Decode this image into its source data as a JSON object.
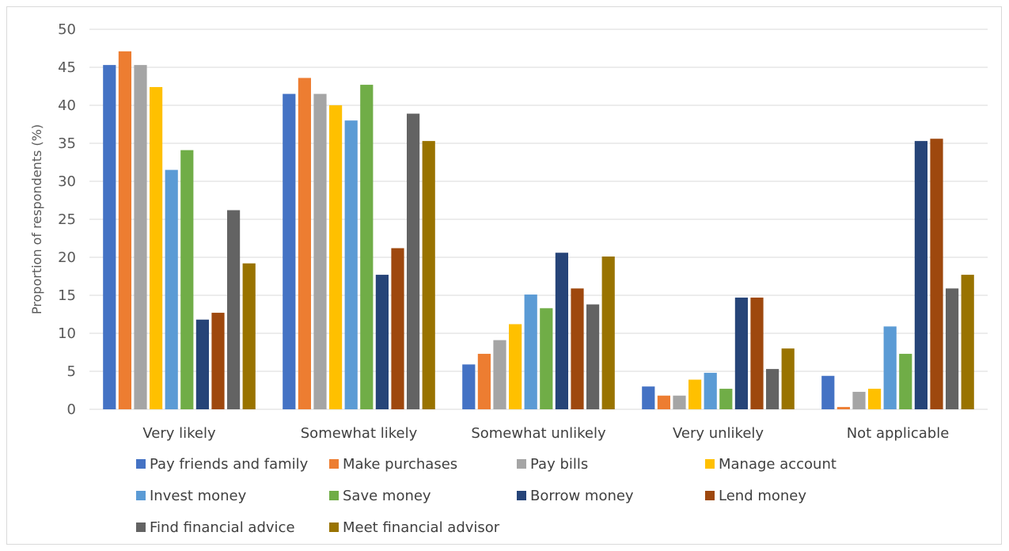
{
  "chart_data": {
    "type": "bar",
    "title": "",
    "xlabel": "",
    "ylabel": "Proportion of respondents (%)",
    "ylim": [
      0,
      50
    ],
    "yticks": [
      0,
      5,
      10,
      15,
      20,
      25,
      30,
      35,
      40,
      45,
      50
    ],
    "grid": true,
    "legend_position": "bottom",
    "categories": [
      "Very likely",
      "Somewhat likely",
      "Somewhat unlikely",
      "Very unlikely",
      "Not applicable"
    ],
    "series": [
      {
        "name": "Pay friends and family",
        "color": "#4472c4",
        "values": [
          45.3,
          41.5,
          5.9,
          3.0,
          4.4
        ]
      },
      {
        "name": "Make purchases",
        "color": "#ed7d31",
        "values": [
          47.1,
          43.6,
          7.3,
          1.8,
          0.3
        ]
      },
      {
        "name": "Pay bills",
        "color": "#a5a5a5",
        "values": [
          45.3,
          41.5,
          9.1,
          1.8,
          2.3
        ]
      },
      {
        "name": "Manage account",
        "color": "#ffc000",
        "values": [
          42.4,
          40.0,
          11.2,
          3.9,
          2.7
        ]
      },
      {
        "name": "Invest money",
        "color": "#5b9bd5",
        "values": [
          31.5,
          38.0,
          15.1,
          4.8,
          10.9
        ]
      },
      {
        "name": "Save money",
        "color": "#70ad47",
        "values": [
          34.1,
          42.7,
          13.3,
          2.7,
          7.3
        ]
      },
      {
        "name": "Borrow money",
        "color": "#264478",
        "values": [
          11.8,
          17.7,
          20.6,
          14.7,
          35.3
        ]
      },
      {
        "name": "Lend money",
        "color": "#9e480e",
        "values": [
          12.7,
          21.2,
          15.9,
          14.7,
          35.6
        ]
      },
      {
        "name": "Find financial advice",
        "color": "#636363",
        "values": [
          26.2,
          38.9,
          13.8,
          5.3,
          15.9
        ]
      },
      {
        "name": "Meet financial advisor",
        "color": "#997300",
        "values": [
          19.2,
          35.3,
          20.1,
          8.0,
          17.7
        ]
      }
    ]
  }
}
